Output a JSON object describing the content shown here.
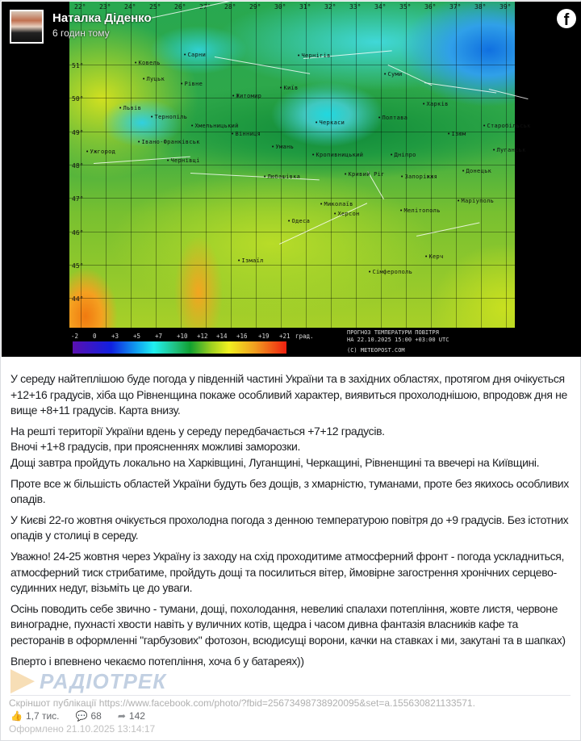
{
  "post": {
    "author": "Наталка Діденко",
    "time": "6 годин тому",
    "platform_icon": "facebook-icon"
  },
  "map": {
    "longitudes": [
      "22°",
      "23°",
      "24°",
      "25°",
      "26°",
      "27°",
      "28°",
      "29°",
      "30°",
      "31°",
      "32°",
      "33°",
      "34°",
      "35°",
      "36°",
      "37°",
      "38°",
      "39°"
    ],
    "latitudes": [
      "51°",
      "50°",
      "49°",
      "48°",
      "47°",
      "46°",
      "45°",
      "44°"
    ],
    "cities": [
      "Ковель",
      "Сарни",
      "Луцьк",
      "Рівне",
      "Житомир",
      "Львів",
      "Тернопіль",
      "Хмельницький",
      "Вінниця",
      "Івано-Франківськ",
      "Ужгород",
      "Чернівці",
      "Київ",
      "Чернігів",
      "Суми",
      "Черкаси",
      "Полтава",
      "Харків",
      "Ізюм",
      "Старобільськ",
      "Луганськ",
      "Кропивницький",
      "Дніпро",
      "Умань",
      "Кривий Ріг",
      "Запоріжжя",
      "Донецьк",
      "Любашівка",
      "Миколаїв",
      "Херсон",
      "Одеса",
      "Мелітополь",
      "Маріуполь",
      "Ізмаїл",
      "Керч",
      "Сімферополь"
    ],
    "legend": {
      "labels": [
        "-2",
        "0",
        "+3",
        "+5",
        "+7",
        "+10",
        "+12",
        "+14",
        "+16",
        "+19",
        "+21"
      ],
      "unit": "град.",
      "colors": [
        "#5a10b0",
        "#1020e0",
        "#10a0f0",
        "#20f0f0",
        "#10a030",
        "#f0f020",
        "#f02010"
      ]
    },
    "forecast_title": "ПРОГНОЗ ТЕМПЕРАТУРИ ПОВІТРЯ",
    "forecast_time": "НА 22.10.2025 15:00 +03:00 UTC",
    "copyright": "(C) METEOPOST.COM"
  },
  "paragraphs": [
    "У середу найтеплішою буде погода у південній частині України та в західних областях, протягом дня очікується +12+16 градусів, хіба що Рівненщина покаже особливий характер, виявиться прохолоднішою, впродовж дня не вище +8+11 градусів. Карта внизу.",
    "На решті території України вдень у середу передбачається +7+12 градусів.",
    "Вночі +1+8 градусів, при проясненнях можливі заморозки.",
    "Дощі завтра пройдуть локально на Харківщині, Луганщині, Черкащині, Рівненщині та ввечері на Київщині.",
    "Проте все ж більшість областей України будуть без дощів, з хмарністю, туманами, проте без якихось особливих опадів.",
    "У Києві 22-го жовтня очікується прохолодна погода з денною температурою повітря до +9 градусів. Без істотних опадів у столиці в середу.",
    "Уважно! 24-25 жовтня через Україну із заходу на схід проходитиме атмосферний фронт - погода ускладниться, атмосферний тиск стрибатиме, пройдуть дощі та посилиться вітер, ймовірне загострення хронічних серцево-судинних недуг, візьміть це до уваги.",
    "Осінь поводить себе звично - тумани, дощі, похолодання, невеликі спалахи потепління, жовте листя, червоне виноградне, пухнасті хвости навіть у вуличних котів, щедра і часом дивна фантазія власників кафе та ресторанів в оформленні \"гарбузових\" фотозон, всюдисущі ворони, качки на ставках і ми, закутані та в шапках)",
    "Вперто і впевнено чекаємо потепління, хоча б у батареях))"
  ],
  "watermark": "РАДІОТРЕК",
  "footer": {
    "screenshot": "Скріншот публікації https://www.facebook.com/photo/?fbid=25673498738920095&set=a.155630821133571.",
    "stamp": "Оформлено 21.10.2025 13:14:17",
    "likes": "1,7 тис.",
    "comments": "68",
    "shares": "142"
  }
}
